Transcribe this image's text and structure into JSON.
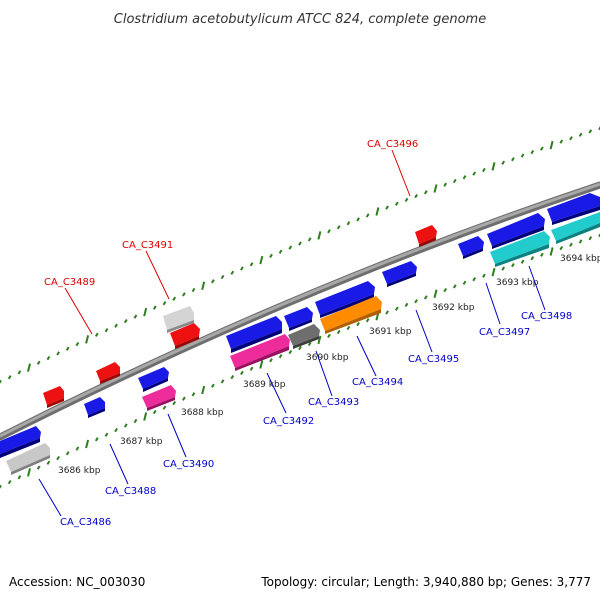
{
  "title": "Clostridium acetobutylicum ATCC 824, complete genome",
  "footer": {
    "accession": "Accession: NC_003030",
    "summary": "Topology: circular; Length: 3,940,880 bp; Genes: 3,777"
  },
  "ticks": [
    "3686 kbp",
    "3687 kbp",
    "3688 kbp",
    "3689 kbp",
    "3690 kbp",
    "3691 kbp",
    "3692 kbp",
    "3693 kbp",
    "3694 kbp"
  ],
  "colors": {
    "backbone": "#8c8c8c",
    "forward_label": "#dd0000",
    "reverse_label": "#0000cc",
    "tick_green": "#2e7d1e",
    "gene_red": "#ee1111",
    "gene_blue": "#1a1ae6",
    "gene_grey": "#bdbdbd",
    "gene_darkgrey": "#6e6e6e",
    "gene_magenta": "#ee2b9a",
    "gene_orange": "#ff8c00",
    "gene_cyan": "#22cccc"
  },
  "gene_labels": {
    "forward": [
      "CA_C3489",
      "CA_C3491",
      "CA_C3496"
    ],
    "reverse": [
      "CA_C3486",
      "CA_C3488",
      "CA_C3490",
      "CA_C3492",
      "CA_C3493",
      "CA_C3494",
      "CA_C3495",
      "CA_C3497",
      "CA_C3498"
    ]
  }
}
